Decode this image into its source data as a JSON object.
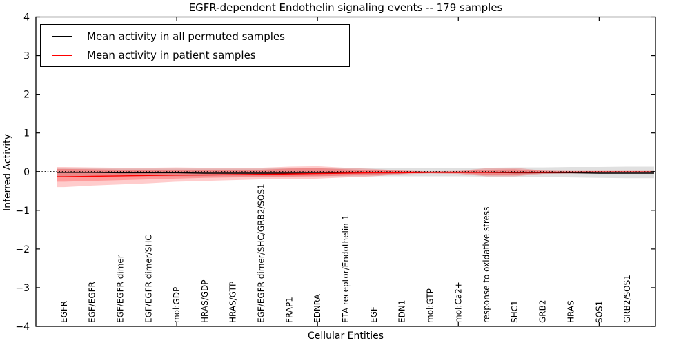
{
  "chart_data": {
    "type": "line",
    "title": "EGFR-dependent Endothelin signaling events -- 179 samples",
    "xlabel": "Cellular Entities",
    "ylabel": "Inferred Activity",
    "ylim": [
      -4,
      4
    ],
    "xlim": [
      0,
      22
    ],
    "yticks": [
      -4,
      -3,
      -2,
      -1,
      0,
      1,
      2,
      3,
      4
    ],
    "ytick_labels": [
      "−4",
      "−3",
      "−2",
      "−1",
      "0",
      "1",
      "2",
      "3",
      "4"
    ],
    "x_major_ticks": [
      5,
      10,
      15,
      20
    ],
    "grid": false,
    "categories": [
      "EGFR",
      "EGF/EGFR",
      "EGF/EGFR dimer",
      "EGF/EGFR dimer/SHC",
      "mol:GDP",
      "HRAS/GDP",
      "HRAS/GTP",
      "EGF/EGFR dimer/SHC/GRB2/SOS1",
      "FRAP1",
      "EDNRA",
      "ETA receptor/Endothelin-1",
      "EGF",
      "EDN1",
      "mol:GTP",
      "mol:Ca2+",
      "response to oxidative stress",
      "SHC1",
      "GRB2",
      "HRAS",
      "SOS1",
      "GRB2/SOS1"
    ],
    "series": [
      {
        "name": "Mean activity in all permuted samples",
        "color": "#000000",
        "values": [
          -0.02,
          -0.02,
          -0.03,
          -0.03,
          -0.03,
          -0.04,
          -0.04,
          -0.04,
          -0.04,
          -0.04,
          -0.03,
          -0.03,
          -0.03,
          -0.02,
          -0.02,
          -0.02,
          -0.03,
          -0.03,
          -0.03,
          -0.04,
          -0.04
        ]
      },
      {
        "name": "Mean activity in patient samples",
        "color": "#ff0000",
        "values": [
          -0.13,
          -0.12,
          -0.11,
          -0.1,
          -0.09,
          -0.085,
          -0.08,
          -0.07,
          -0.06,
          -0.05,
          -0.04,
          -0.03,
          -0.03,
          -0.02,
          -0.02,
          -0.02,
          -0.02,
          -0.02,
          -0.015,
          -0.01,
          -0.01
        ]
      }
    ],
    "bands": [
      {
        "name": "permuted-range",
        "color": "#999999",
        "opacity": 0.3,
        "hi": [
          0.08,
          0.08,
          0.08,
          0.08,
          0.08,
          0.08,
          0.08,
          0.08,
          0.09,
          0.09,
          0.09,
          0.09,
          0.1,
          0.1,
          0.1,
          0.1,
          0.11,
          0.11,
          0.12,
          0.12,
          0.13
        ],
        "lo": [
          -0.12,
          -0.12,
          -0.12,
          -0.12,
          -0.12,
          -0.12,
          -0.12,
          -0.12,
          -0.12,
          -0.12,
          -0.12,
          -0.12,
          -0.12,
          -0.12,
          -0.12,
          -0.13,
          -0.13,
          -0.14,
          -0.15,
          -0.16,
          -0.17
        ]
      },
      {
        "name": "patient-range-outer",
        "color": "#ff0000",
        "opacity": 0.2,
        "hi": [
          0.12,
          0.11,
          0.1,
          0.1,
          0.11,
          0.1,
          0.1,
          0.1,
          0.13,
          0.14,
          0.1,
          0.07,
          0.03,
          0.01,
          0.02,
          0.09,
          0.1,
          0.03,
          0.02,
          0.02,
          0.02
        ],
        "lo": [
          -0.4,
          -0.36,
          -0.33,
          -0.3,
          -0.26,
          -0.24,
          -0.22,
          -0.2,
          -0.2,
          -0.18,
          -0.15,
          -0.12,
          -0.07,
          -0.05,
          -0.06,
          -0.12,
          -0.12,
          -0.06,
          -0.05,
          -0.04,
          -0.04
        ]
      },
      {
        "name": "patient-range-inner",
        "color": "#ff0000",
        "opacity": 0.24,
        "hi": [
          0.07,
          0.06,
          0.05,
          0.05,
          0.05,
          0.05,
          0.05,
          0.05,
          0.08,
          0.09,
          0.06,
          0.04,
          0.02,
          0.005,
          0.01,
          0.05,
          0.06,
          0.02,
          0.01,
          0.01,
          0.01
        ],
        "lo": [
          -0.26,
          -0.24,
          -0.22,
          -0.2,
          -0.18,
          -0.16,
          -0.15,
          -0.14,
          -0.13,
          -0.12,
          -0.1,
          -0.08,
          -0.05,
          -0.03,
          -0.04,
          -0.08,
          -0.08,
          -0.04,
          -0.03,
          -0.03,
          -0.02
        ]
      }
    ],
    "zero_line": {
      "value": 0,
      "style": "dotted",
      "color": "#000000"
    },
    "legend": {
      "position": "upper left",
      "entries": [
        {
          "label": "Mean activity in all permuted samples",
          "color": "#000000"
        },
        {
          "label": "Mean activity in patient samples",
          "color": "#ff0000"
        }
      ]
    }
  }
}
